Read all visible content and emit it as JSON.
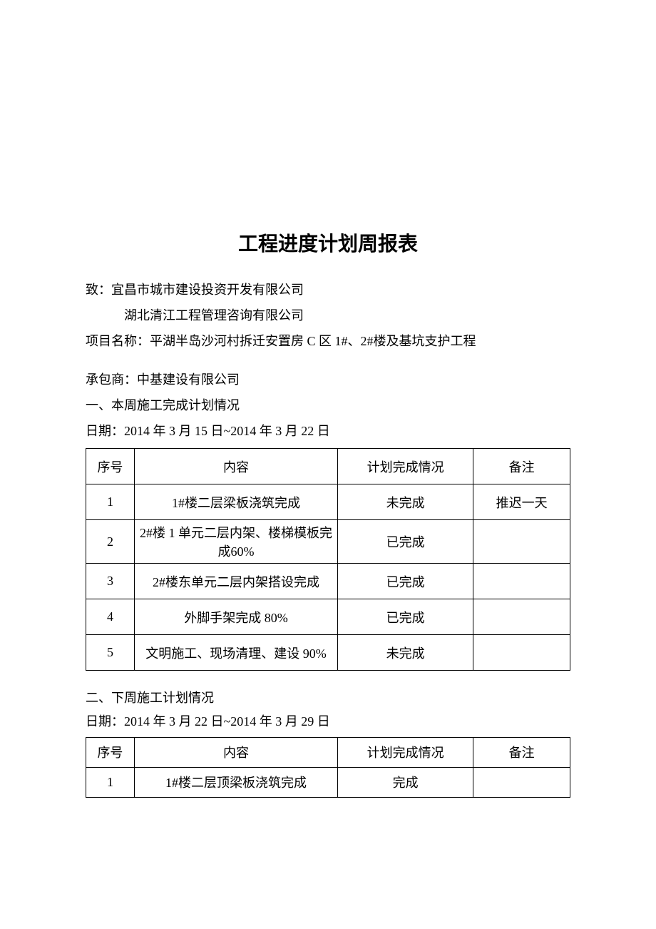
{
  "title": "工程进度计划周报表",
  "to_label": "致：",
  "recipient1": "宜昌市城市建设投资开发有限公司",
  "recipient2": "湖北清江工程管理咨询有限公司",
  "project_label": "项目名称：",
  "project_name": "平湖半岛沙河村拆迁安置房 C 区 1#、2#楼及基坑支护工程",
  "contractor_label": "承包商：",
  "contractor_name": "中基建设有限公司",
  "section1_title": "一、本周施工完成计划情况",
  "section1_date": "日期：2014 年 3 月 15 日~2014 年 3 月 22 日",
  "table_headers": {
    "seq": "序号",
    "content": "内容",
    "status": "计划完成情况",
    "note": "备注"
  },
  "table1_rows": [
    {
      "seq": "1",
      "content": "1#楼二层梁板浇筑完成",
      "status": "未完成",
      "note": "推迟一天"
    },
    {
      "seq": "2",
      "content": "2#楼 1 单元二层内架、楼梯模板完成60%",
      "status": "已完成",
      "note": ""
    },
    {
      "seq": "3",
      "content": "2#楼东单元二层内架搭设完成",
      "status": "已完成",
      "note": ""
    },
    {
      "seq": "4",
      "content": "外脚手架完成 80%",
      "status": "已完成",
      "note": ""
    },
    {
      "seq": "5",
      "content": "文明施工、现场清理、建设 90%",
      "status": "未完成",
      "note": ""
    }
  ],
  "section2_title": "二、下周施工计划情况",
  "section2_date": "日期：2014 年 3 月 22 日~2014 年 3 月 29 日",
  "table2_rows": [
    {
      "seq": "1",
      "content": "1#楼二层顶梁板浇筑完成",
      "status": "完成",
      "note": ""
    }
  ]
}
